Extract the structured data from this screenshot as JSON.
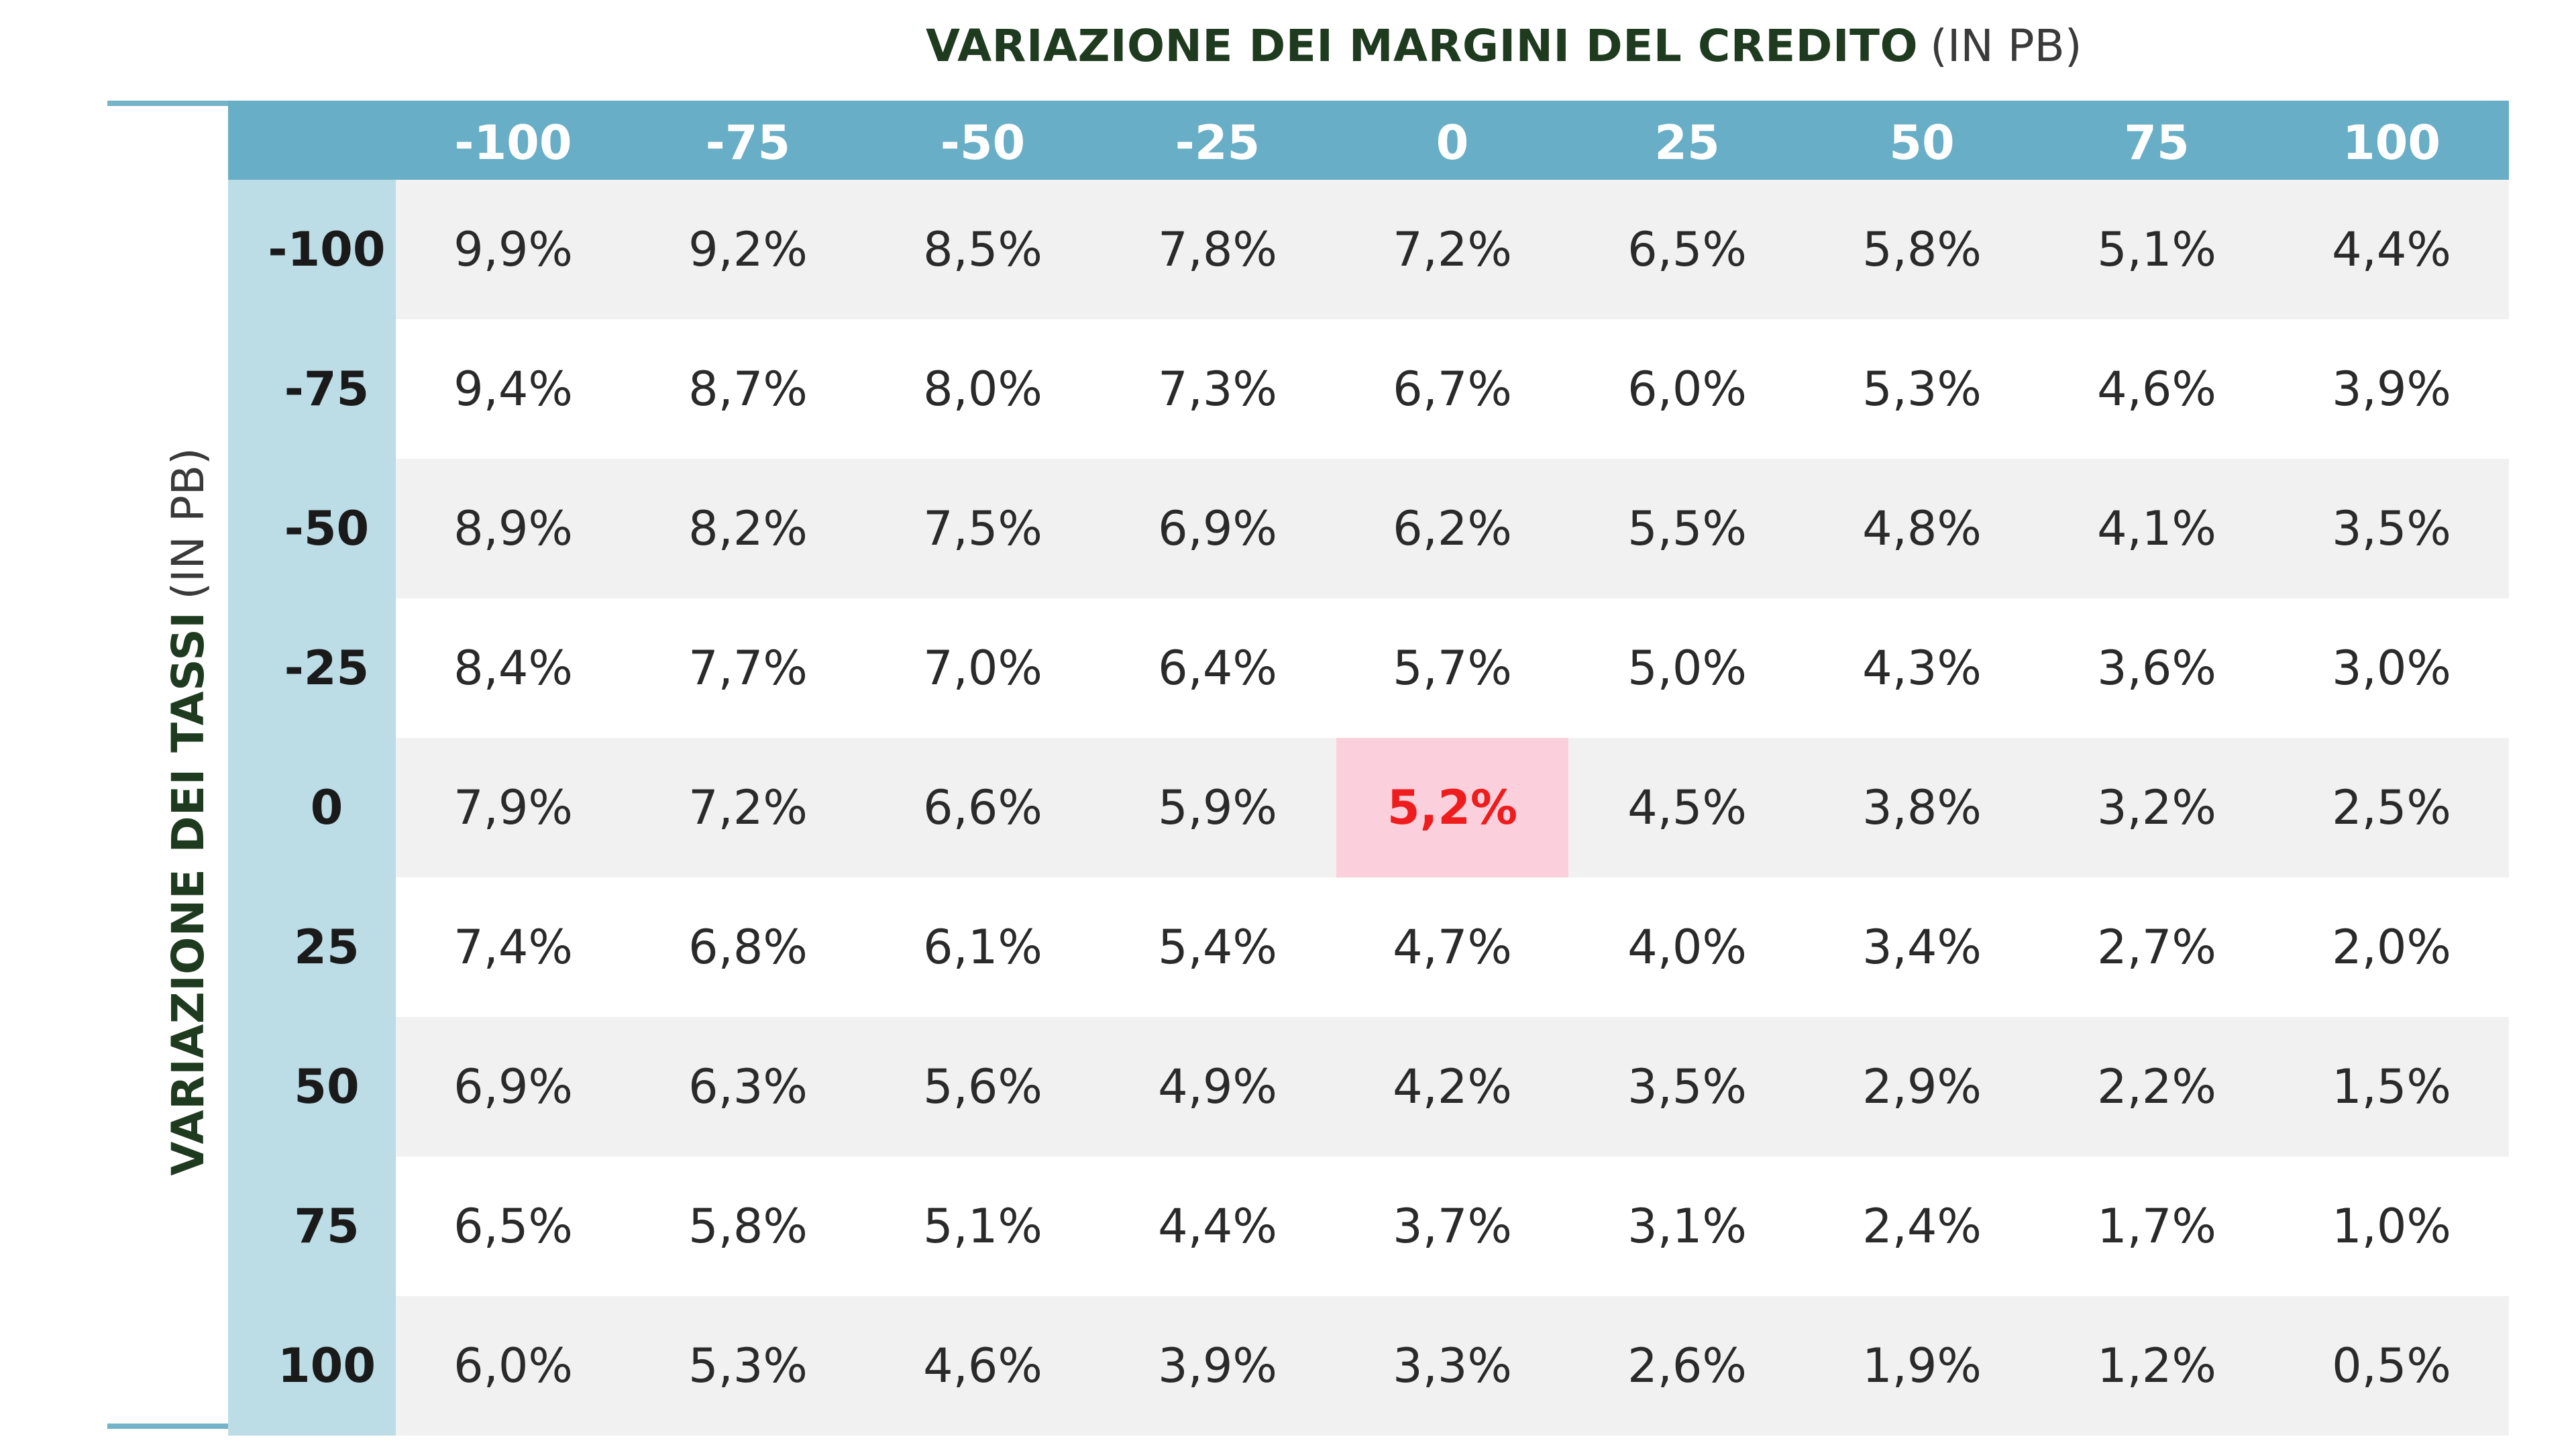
{
  "chart_data": {
    "type": "table",
    "column_title": "VARIAZIONE DEI MARGINI DEL CREDITO",
    "column_title_unit": "(IN PB)",
    "row_title": "VARIAZIONE DEI TASSI",
    "row_title_unit": "(IN PB)",
    "columns": [
      "-100",
      "-75",
      "-50",
      "-25",
      "0",
      "25",
      "50",
      "75",
      "100"
    ],
    "rows": [
      {
        "label": "-100",
        "values": [
          "9,9%",
          "9,2%",
          "8,5%",
          "7,8%",
          "7,2%",
          "6,5%",
          "5,8%",
          "5,1%",
          "4,4%"
        ]
      },
      {
        "label": "-75",
        "values": [
          "9,4%",
          "8,7%",
          "8,0%",
          "7,3%",
          "6,7%",
          "6,0%",
          "5,3%",
          "4,6%",
          "3,9%"
        ]
      },
      {
        "label": "-50",
        "values": [
          "8,9%",
          "8,2%",
          "7,5%",
          "6,9%",
          "6,2%",
          "5,5%",
          "4,8%",
          "4,1%",
          "3,5%"
        ]
      },
      {
        "label": "-25",
        "values": [
          "8,4%",
          "7,7%",
          "7,0%",
          "6,4%",
          "5,7%",
          "5,0%",
          "4,3%",
          "3,6%",
          "3,0%"
        ]
      },
      {
        "label": "0",
        "values": [
          "7,9%",
          "7,2%",
          "6,6%",
          "5,9%",
          "5,2%",
          "4,5%",
          "3,8%",
          "3,2%",
          "2,5%"
        ]
      },
      {
        "label": "25",
        "values": [
          "7,4%",
          "6,8%",
          "6,1%",
          "5,4%",
          "4,7%",
          "4,0%",
          "3,4%",
          "2,7%",
          "2,0%"
        ]
      },
      {
        "label": "50",
        "values": [
          "6,9%",
          "6,3%",
          "5,6%",
          "4,9%",
          "4,2%",
          "3,5%",
          "2,9%",
          "2,2%",
          "1,5%"
        ]
      },
      {
        "label": "75",
        "values": [
          "6,5%",
          "5,8%",
          "5,1%",
          "4,4%",
          "3,7%",
          "3,1%",
          "2,4%",
          "1,7%",
          "1,0%"
        ]
      },
      {
        "label": "100",
        "values": [
          "6,0%",
          "5,3%",
          "4,6%",
          "3,9%",
          "3,3%",
          "2,6%",
          "1,9%",
          "1,2%",
          "0,5%"
        ]
      }
    ],
    "highlight": {
      "row": "0",
      "column": "0"
    },
    "colors": {
      "title_text": "#1f3b1f",
      "unit_text": "#3a3a3a",
      "header_bg": "#68aec6",
      "header_text": "#ffffff",
      "row_header_bg": "#bcdce6",
      "row_header_text": "#1a1a1a",
      "stripe_bg": "#f1f1f1",
      "plain_bg": "#ffffff",
      "cell_text": "#2a2a2a",
      "highlight_bg": "#fbd0dc",
      "highlight_text": "#ee1c1c",
      "rule": "#74b3c9"
    }
  }
}
